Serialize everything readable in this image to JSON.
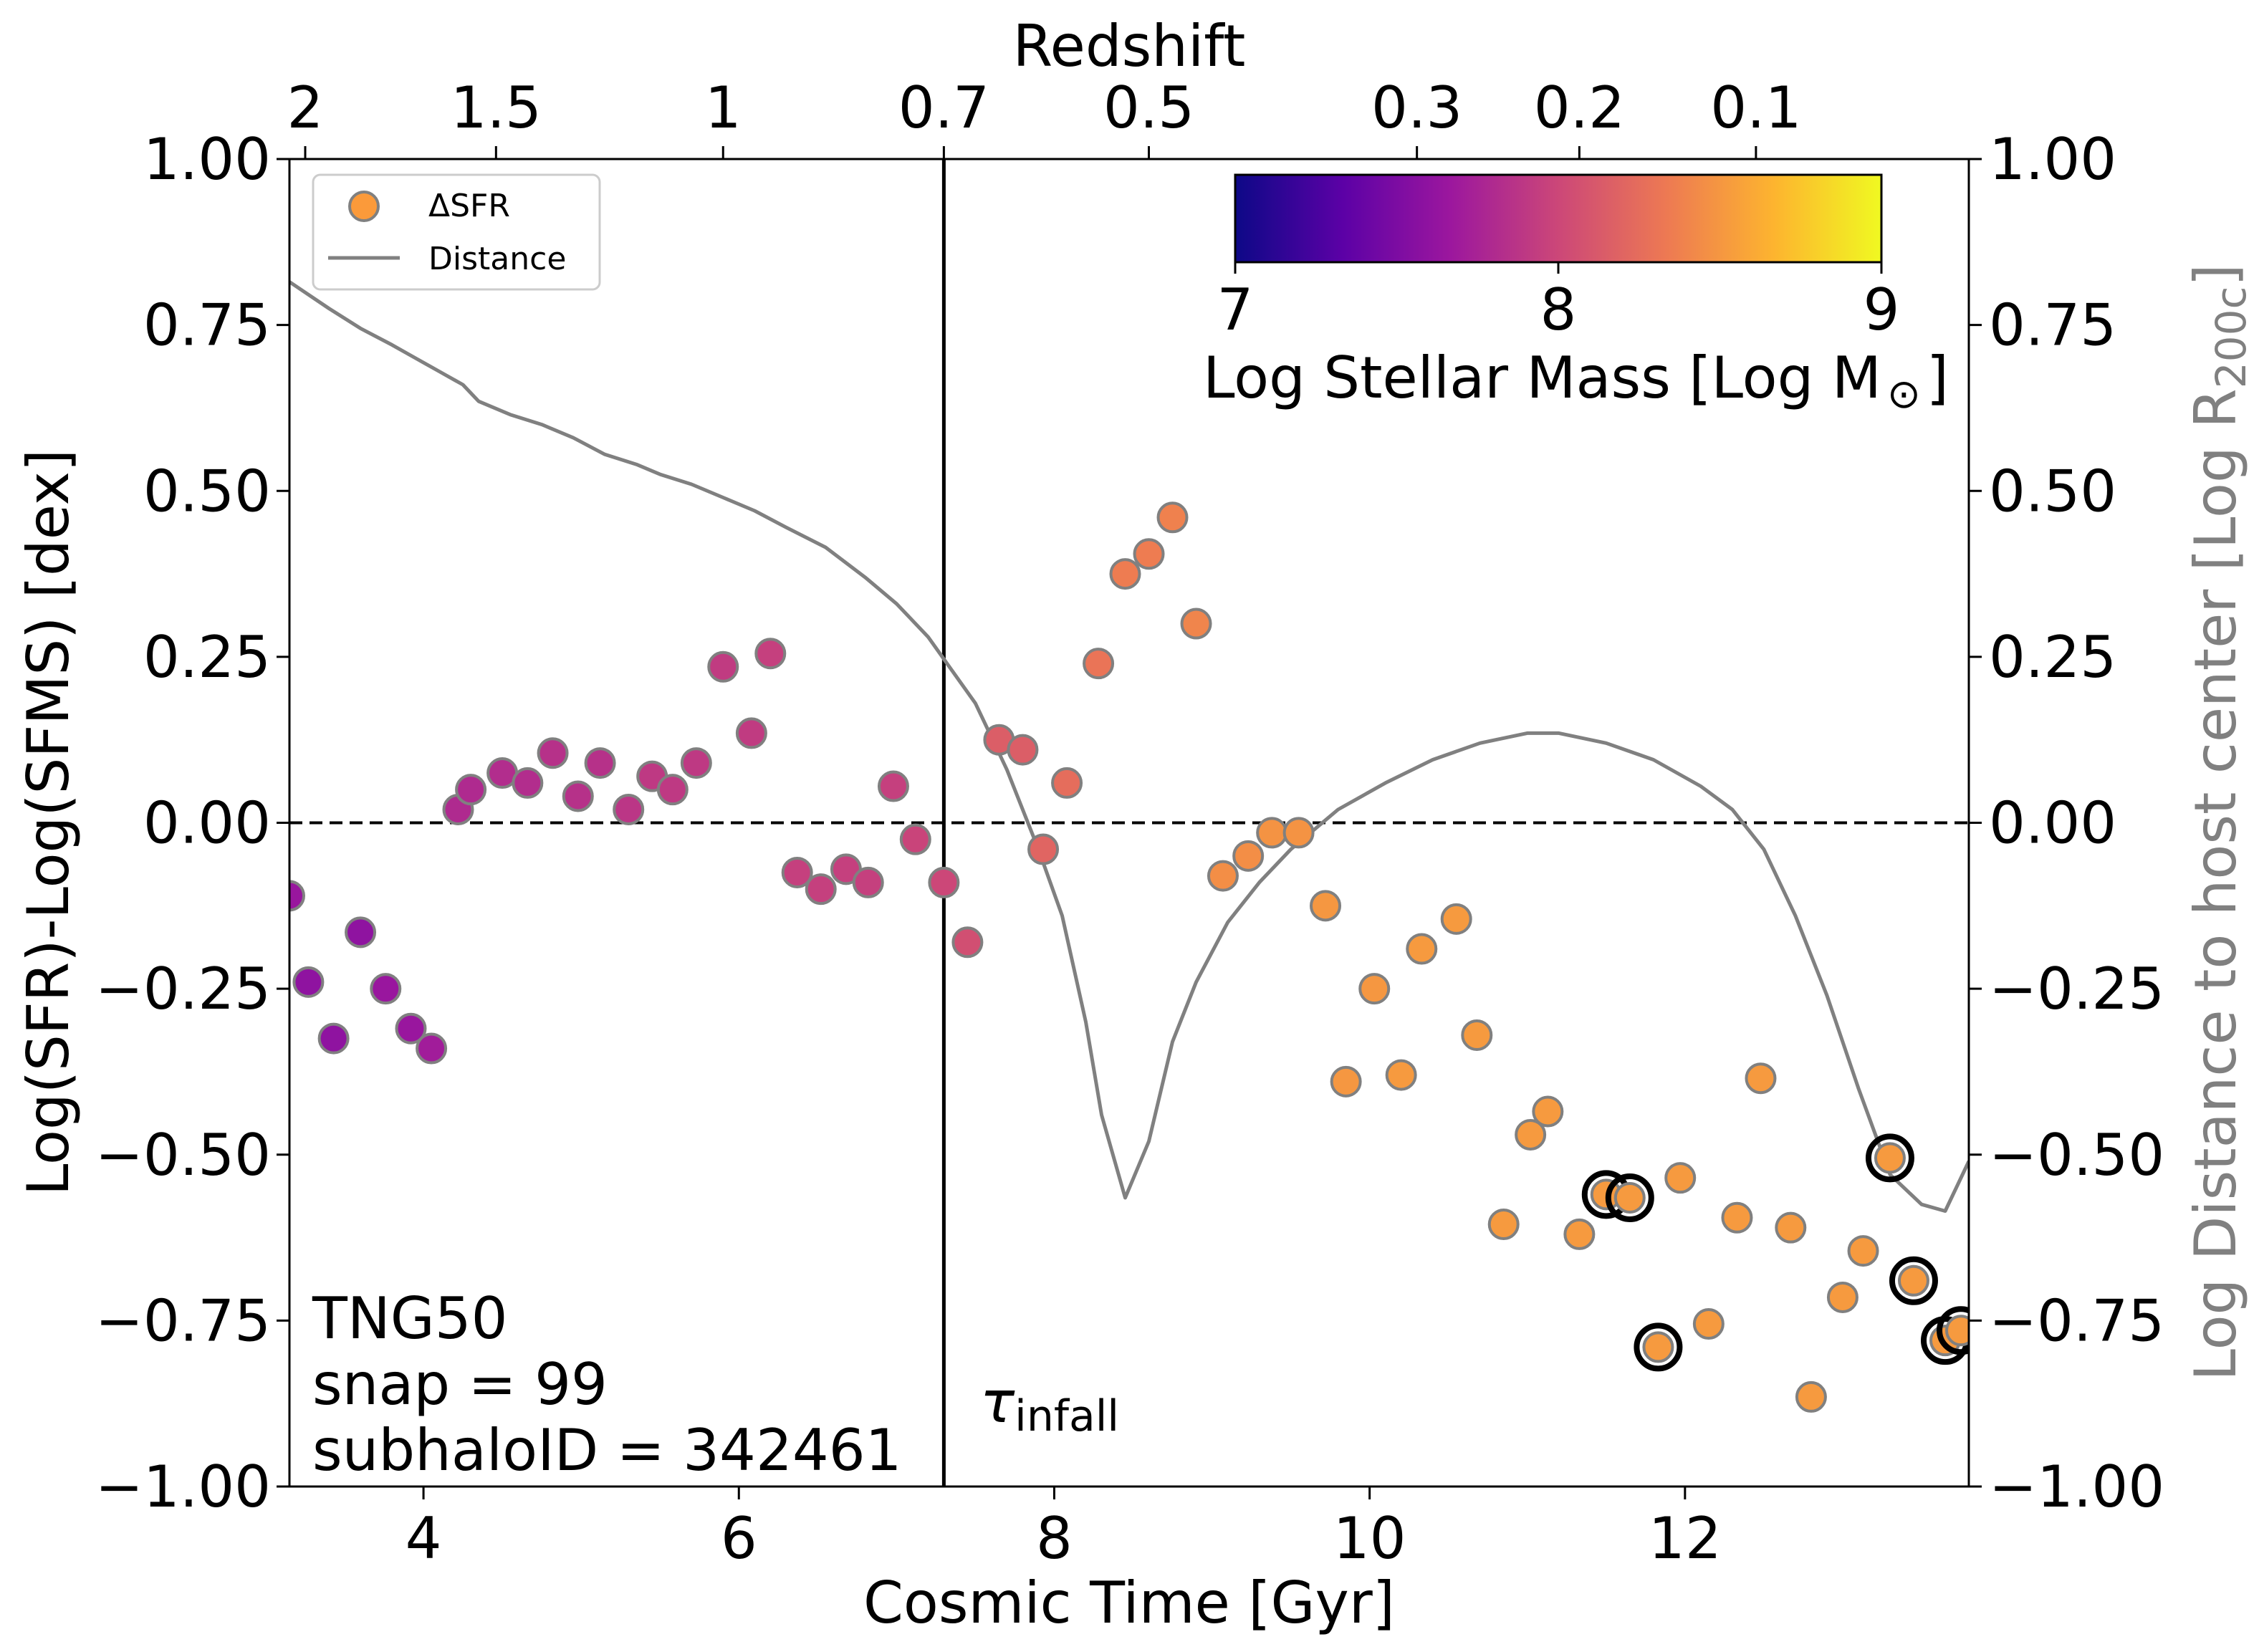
{
  "chart_data": {
    "type": "scatter",
    "title": "",
    "xlabel": "Cosmic Time [Gyr]",
    "ylabel": "Log(SFR)-Log(SFMS) [dex]",
    "ylabel_right": "Log Distance to host center [Log R",
    "ylabel_right_sub": "200c",
    "ylabel_right_close": "]",
    "top_axis_label": "Redshift",
    "xlim": [
      3.15,
      13.8
    ],
    "ylim": [
      -1.0,
      1.0
    ],
    "xticks": [
      4,
      6,
      8,
      10,
      12
    ],
    "yticks": [
      -1.0,
      -0.75,
      -0.5,
      -0.25,
      0.0,
      0.25,
      0.5,
      0.75,
      1.0
    ],
    "yticklabels": [
      "−1.00",
      "−0.75",
      "−0.50",
      "−0.25",
      "0.00",
      "0.25",
      "0.50",
      "0.75",
      "1.00"
    ],
    "top_ticks": [
      {
        "label": "2",
        "t": 3.25
      },
      {
        "label": "1.5",
        "t": 4.46
      },
      {
        "label": "1",
        "t": 5.9
      },
      {
        "label": "0.7",
        "t": 7.3
      },
      {
        "label": "0.5",
        "t": 8.6
      },
      {
        "label": "0.3",
        "t": 10.3
      },
      {
        "label": "0.2",
        "t": 11.33
      },
      {
        "label": "0.1",
        "t": 12.45
      }
    ],
    "hline_y": 0.0,
    "vline_x": 7.3,
    "infall_label": "τ",
    "infall_sub": "infall",
    "info_lines": [
      "TNG50",
      "snap = 99",
      "subhaloID = 342461"
    ],
    "legend": {
      "placement": "top-left",
      "entries": [
        "ΔSFR",
        "Distance"
      ]
    },
    "colorbar": {
      "label": "Log Stellar Mass [Log M",
      "label_sym": "⊙",
      "label_close": "]",
      "range": [
        7,
        9
      ],
      "ticks": [
        "7",
        "8",
        "9"
      ],
      "colormap": "plasma",
      "stops": [
        "#0d0887",
        "#5c01a6",
        "#9c179e",
        "#cc4778",
        "#ed7953",
        "#fdb42f",
        "#f0f921"
      ],
      "placement": "top-right"
    },
    "colors": {
      "distance_line": "#808080",
      "marker_edge": "#808080",
      "highlight_ring": "#000000",
      "right_axis_label": "#808080"
    },
    "series": [
      {
        "name": "ΔSFR",
        "points": [
          {
            "x": 3.15,
            "y": -0.11,
            "m": 7.65
          },
          {
            "x": 3.27,
            "y": -0.24,
            "m": 7.6
          },
          {
            "x": 3.43,
            "y": -0.325,
            "m": 7.6
          },
          {
            "x": 3.6,
            "y": -0.165,
            "m": 7.6
          },
          {
            "x": 3.76,
            "y": -0.25,
            "m": 7.65
          },
          {
            "x": 3.92,
            "y": -0.31,
            "m": 7.65
          },
          {
            "x": 4.05,
            "y": -0.34,
            "m": 7.7
          },
          {
            "x": 4.22,
            "y": 0.02,
            "m": 7.8
          },
          {
            "x": 4.3,
            "y": 0.05,
            "m": 7.8
          },
          {
            "x": 4.5,
            "y": 0.075,
            "m": 7.82
          },
          {
            "x": 4.66,
            "y": 0.06,
            "m": 7.82
          },
          {
            "x": 4.82,
            "y": 0.105,
            "m": 7.85
          },
          {
            "x": 4.98,
            "y": 0.04,
            "m": 7.85
          },
          {
            "x": 5.12,
            "y": 0.09,
            "m": 7.85
          },
          {
            "x": 5.3,
            "y": 0.02,
            "m": 7.88
          },
          {
            "x": 5.45,
            "y": 0.07,
            "m": 7.9
          },
          {
            "x": 5.58,
            "y": 0.05,
            "m": 7.9
          },
          {
            "x": 5.73,
            "y": 0.09,
            "m": 7.9
          },
          {
            "x": 5.9,
            "y": 0.235,
            "m": 7.92
          },
          {
            "x": 6.08,
            "y": 0.135,
            "m": 7.92
          },
          {
            "x": 6.2,
            "y": 0.255,
            "m": 7.95
          },
          {
            "x": 6.37,
            "y": -0.075,
            "m": 7.95
          },
          {
            "x": 6.52,
            "y": -0.1,
            "m": 7.95
          },
          {
            "x": 6.68,
            "y": -0.07,
            "m": 7.95
          },
          {
            "x": 6.82,
            "y": -0.09,
            "m": 7.95
          },
          {
            "x": 6.98,
            "y": 0.055,
            "m": 7.95
          },
          {
            "x": 7.12,
            "y": -0.025,
            "m": 7.98
          },
          {
            "x": 7.3,
            "y": -0.09,
            "m": 8.0
          },
          {
            "x": 7.45,
            "y": -0.18,
            "m": 8.05
          },
          {
            "x": 7.65,
            "y": 0.125,
            "m": 8.15
          },
          {
            "x": 7.8,
            "y": 0.11,
            "m": 8.15
          },
          {
            "x": 7.93,
            "y": -0.04,
            "m": 8.2
          },
          {
            "x": 8.08,
            "y": 0.06,
            "m": 8.25
          },
          {
            "x": 8.28,
            "y": 0.24,
            "m": 8.3
          },
          {
            "x": 8.45,
            "y": 0.375,
            "m": 8.35
          },
          {
            "x": 8.6,
            "y": 0.405,
            "m": 8.35
          },
          {
            "x": 8.75,
            "y": 0.46,
            "m": 8.38
          },
          {
            "x": 8.9,
            "y": 0.3,
            "m": 8.4
          },
          {
            "x": 9.07,
            "y": -0.08,
            "m": 8.45
          },
          {
            "x": 9.23,
            "y": -0.05,
            "m": 8.45
          },
          {
            "x": 9.38,
            "y": -0.015,
            "m": 8.48
          },
          {
            "x": 9.55,
            "y": -0.015,
            "m": 8.48
          },
          {
            "x": 9.72,
            "y": -0.125,
            "m": 8.5
          },
          {
            "x": 9.85,
            "y": -0.39,
            "m": 8.5
          },
          {
            "x": 10.03,
            "y": -0.25,
            "m": 8.5
          },
          {
            "x": 10.2,
            "y": -0.38,
            "m": 8.52
          },
          {
            "x": 10.33,
            "y": -0.19,
            "m": 8.52
          },
          {
            "x": 10.55,
            "y": -0.145,
            "m": 8.52
          },
          {
            "x": 10.68,
            "y": -0.32,
            "m": 8.52
          },
          {
            "x": 10.85,
            "y": -0.605,
            "m": 8.52
          },
          {
            "x": 11.02,
            "y": -0.47,
            "m": 8.52
          },
          {
            "x": 11.13,
            "y": -0.435,
            "m": 8.52
          },
          {
            "x": 11.33,
            "y": -0.62,
            "m": 8.52
          },
          {
            "x": 11.5,
            "y": -0.56,
            "m": 8.52,
            "ring": true
          },
          {
            "x": 11.65,
            "y": -0.565,
            "m": 8.52,
            "ring": true
          },
          {
            "x": 11.83,
            "y": -0.79,
            "m": 8.52,
            "ring": true
          },
          {
            "x": 11.97,
            "y": -0.535,
            "m": 8.52
          },
          {
            "x": 12.15,
            "y": -0.755,
            "m": 8.52
          },
          {
            "x": 12.33,
            "y": -0.595,
            "m": 8.52
          },
          {
            "x": 12.48,
            "y": -0.385,
            "m": 8.52
          },
          {
            "x": 12.67,
            "y": -0.61,
            "m": 8.52
          },
          {
            "x": 12.8,
            "y": -0.865,
            "m": 8.52
          },
          {
            "x": 13.0,
            "y": -0.715,
            "m": 8.52
          },
          {
            "x": 13.13,
            "y": -0.645,
            "m": 8.52
          },
          {
            "x": 13.3,
            "y": -0.505,
            "m": 8.52,
            "ring": true
          },
          {
            "x": 13.45,
            "y": -0.69,
            "m": 8.52,
            "ring": true
          },
          {
            "x": 13.65,
            "y": -0.78,
            "m": 8.52,
            "ring": true
          },
          {
            "x": 13.75,
            "y": -0.765,
            "m": 8.52,
            "ring": true
          }
        ]
      },
      {
        "name": "Distance",
        "type": "line",
        "x": [
          3.15,
          3.4,
          3.6,
          3.8,
          3.95,
          4.1,
          4.25,
          4.35,
          4.55,
          4.75,
          4.95,
          5.15,
          5.35,
          5.5,
          5.7,
          5.9,
          6.1,
          6.3,
          6.55,
          6.8,
          7.0,
          7.2,
          7.35,
          7.5,
          7.7,
          7.9,
          8.05,
          8.2,
          8.3,
          8.45,
          8.6,
          8.75,
          8.9,
          9.1,
          9.3,
          9.5,
          9.8,
          10.1,
          10.4,
          10.7,
          11.0,
          11.2,
          11.5,
          11.8,
          12.1,
          12.3,
          12.5,
          12.7,
          12.9,
          13.1,
          13.3,
          13.5,
          13.65,
          13.8
        ],
        "y": [
          0.815,
          0.775,
          0.745,
          0.72,
          0.7,
          0.68,
          0.66,
          0.635,
          0.615,
          0.6,
          0.58,
          0.555,
          0.54,
          0.525,
          0.51,
          0.49,
          0.47,
          0.445,
          0.415,
          0.37,
          0.33,
          0.28,
          0.23,
          0.18,
          0.08,
          -0.04,
          -0.14,
          -0.3,
          -0.44,
          -0.565,
          -0.48,
          -0.33,
          -0.24,
          -0.15,
          -0.09,
          -0.04,
          0.02,
          0.06,
          0.095,
          0.12,
          0.135,
          0.135,
          0.12,
          0.095,
          0.055,
          0.02,
          -0.04,
          -0.14,
          -0.26,
          -0.4,
          -0.53,
          -0.575,
          -0.585,
          -0.51
        ]
      }
    ]
  }
}
